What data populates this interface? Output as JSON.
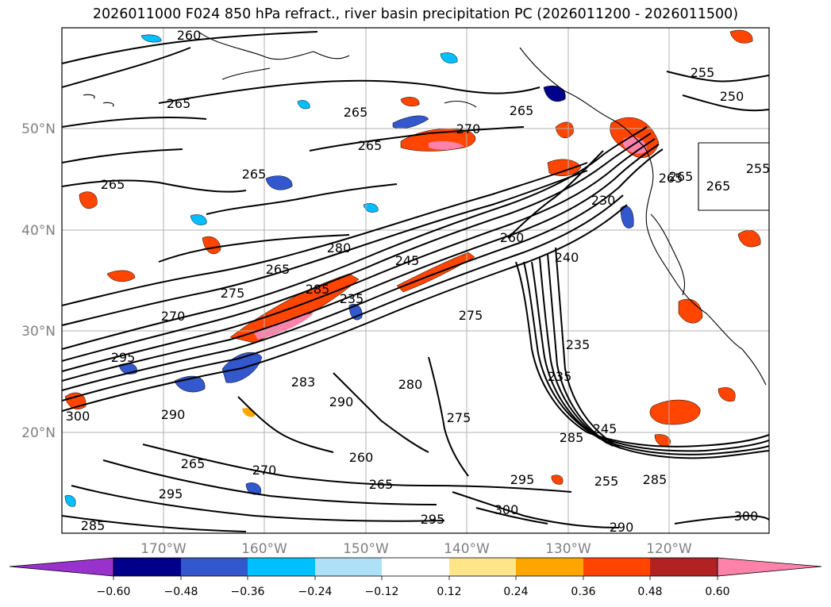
{
  "title": "2026011000 F024 850 hPa refract., river basin precipitation PC (2026011200 - 2026011500)",
  "lat_labels": [
    "50°N",
    "40°N",
    "30°N",
    "20°N"
  ],
  "lon_labels": [
    "170°W",
    "160°W",
    "150°W",
    "140°W",
    "130°W",
    "120°W"
  ],
  "contour_labels": [
    "260",
    "265",
    "265",
    "265",
    "265",
    "270",
    "265",
    "265",
    "265",
    "255",
    "250",
    "265",
    "280",
    "275",
    "270",
    "285",
    "235",
    "245",
    "260",
    "240",
    "230",
    "265",
    "255",
    "275",
    "235",
    "295",
    "300",
    "290",
    "283",
    "280",
    "290",
    "275",
    "260",
    "265",
    "265",
    "270",
    "285",
    "245",
    "255",
    "285",
    "300",
    "295",
    "290",
    "295",
    "300",
    "285",
    "295",
    "265",
    "235"
  ],
  "colorbar": {
    "tick_labels": [
      "−0.60",
      "−0.48",
      "−0.36",
      "−0.24",
      "−0.12",
      "0.12",
      "0.24",
      "0.36",
      "0.48",
      "0.60"
    ],
    "colors": [
      "#9932CC",
      "#00008B",
      "#3357CC",
      "#00BFFF",
      "#AEE0F8",
      "#FFFFFF",
      "#FFE58A",
      "#FFA500",
      "#FF4500",
      "#B22222",
      "#FF82AB"
    ]
  }
}
